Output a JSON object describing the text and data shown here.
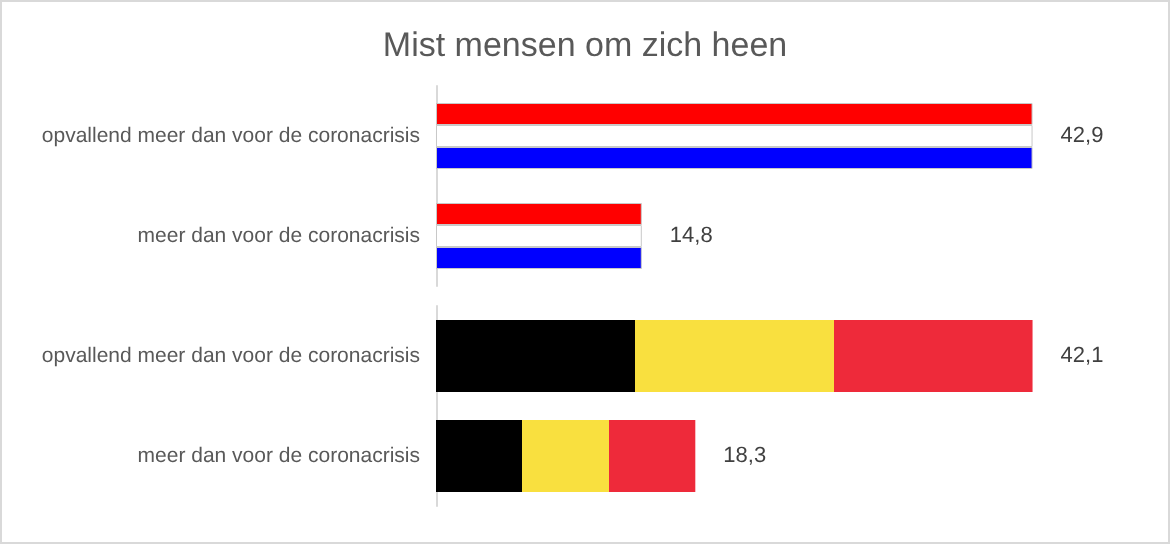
{
  "chart_data": [
    {
      "type": "bar",
      "title": "Mist mensen om zich heen",
      "orientation": "horizontal",
      "tick_labels": "y",
      "categories": [
        "opvallend meer dan voor de coronacrisis",
        "meer dan voor de coronacrisis"
      ],
      "series": [
        {
          "color": "#ff0000",
          "values": [
            42.9,
            14.8
          ]
        },
        {
          "color": "#ffffff",
          "values": [
            42.9,
            14.8
          ],
          "value_labels": [
            "42,9",
            "14,8"
          ]
        },
        {
          "color": "#0000ff",
          "values": [
            42.9,
            14.8
          ]
        }
      ]
    },
    {
      "type": "bar",
      "orientation": "horizontal",
      "tick_labels": "y",
      "categories": [
        "opvallend meer dan voor de coronacrisis",
        "meer dan voor de coronacrisis"
      ],
      "series": [
        {
          "color": "#f9e03f",
          "values": [
            42.1,
            18.3
          ],
          "value_labels": [
            "42,1",
            "18,3"
          ]
        }
      ]
    }
  ]
}
